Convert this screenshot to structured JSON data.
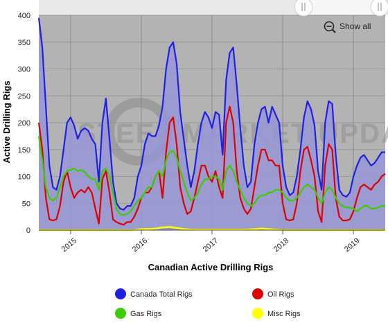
{
  "chart_data": {
    "type": "area",
    "title": "",
    "xlabel": "Canadian Active Drilling Rigs",
    "ylabel": "Active Drilling Rigs",
    "ylim": [
      0,
      400
    ],
    "yticks": [
      0,
      50,
      100,
      150,
      200,
      250,
      300,
      350,
      400
    ],
    "xlim": [
      2014.55,
      2019.45
    ],
    "xticks": [
      {
        "value": 2015,
        "label": "2015"
      },
      {
        "value": 2016,
        "label": "2016"
      },
      {
        "value": 2017,
        "label": "2017"
      },
      {
        "value": 2018,
        "label": "2018"
      },
      {
        "value": 2019,
        "label": "2019"
      }
    ],
    "grid": true,
    "legend_position": "bottom",
    "series": [
      {
        "name": "Canada Total Rigs",
        "color": "#1f1fe6",
        "fill": "rgba(150,150,215,0.85)",
        "x": [
          2014.55,
          2014.6,
          2014.65,
          2014.7,
          2014.75,
          2014.8,
          2014.85,
          2014.9,
          2014.95,
          2015.0,
          2015.05,
          2015.1,
          2015.15,
          2015.2,
          2015.25,
          2015.3,
          2015.35,
          2015.4,
          2015.45,
          2015.5,
          2015.55,
          2015.6,
          2015.65,
          2015.7,
          2015.75,
          2015.8,
          2015.85,
          2015.9,
          2015.95,
          2016.0,
          2016.05,
          2016.1,
          2016.15,
          2016.2,
          2016.25,
          2016.3,
          2016.35,
          2016.4,
          2016.45,
          2016.5,
          2016.55,
          2016.6,
          2016.65,
          2016.7,
          2016.75,
          2016.8,
          2016.85,
          2016.9,
          2016.95,
          2017.0,
          2017.05,
          2017.1,
          2017.15,
          2017.2,
          2017.25,
          2017.3,
          2017.35,
          2017.4,
          2017.45,
          2017.5,
          2017.55,
          2017.6,
          2017.65,
          2017.7,
          2017.75,
          2017.8,
          2017.85,
          2017.9,
          2017.95,
          2018.0,
          2018.05,
          2018.1,
          2018.15,
          2018.2,
          2018.25,
          2018.3,
          2018.35,
          2018.4,
          2018.45,
          2018.5,
          2018.55,
          2018.6,
          2018.65,
          2018.7,
          2018.75,
          2018.8,
          2018.85,
          2018.9,
          2018.95,
          2019.0,
          2019.05,
          2019.1,
          2019.15,
          2019.2,
          2019.25,
          2019.3,
          2019.35,
          2019.4,
          2019.45
        ],
        "values": [
          395,
          340,
          230,
          120,
          80,
          75,
          100,
          150,
          200,
          210,
          195,
          170,
          185,
          190,
          185,
          170,
          160,
          90,
          200,
          245,
          170,
          90,
          50,
          40,
          38,
          45,
          45,
          60,
          100,
          120,
          160,
          180,
          175,
          175,
          195,
          230,
          300,
          340,
          350,
          310,
          220,
          170,
          120,
          80,
          110,
          160,
          200,
          220,
          210,
          190,
          220,
          215,
          140,
          280,
          330,
          340,
          270,
          190,
          120,
          80,
          90,
          160,
          200,
          225,
          230,
          200,
          230,
          215,
          200,
          120,
          80,
          65,
          70,
          100,
          150,
          210,
          240,
          225,
          195,
          110,
          75,
          200,
          240,
          235,
          140,
          75,
          65,
          62,
          70,
          100,
          120,
          135,
          140,
          130,
          120,
          125,
          135,
          145,
          145
        ]
      },
      {
        "name": "Oil Rigs",
        "color": "#e00000",
        "x": [
          2014.55,
          2014.6,
          2014.65,
          2014.7,
          2014.75,
          2014.8,
          2014.85,
          2014.9,
          2014.95,
          2015.0,
          2015.05,
          2015.1,
          2015.15,
          2015.2,
          2015.25,
          2015.3,
          2015.35,
          2015.4,
          2015.45,
          2015.5,
          2015.55,
          2015.6,
          2015.65,
          2015.7,
          2015.75,
          2015.8,
          2015.85,
          2015.9,
          2015.95,
          2016.0,
          2016.05,
          2016.1,
          2016.15,
          2016.2,
          2016.25,
          2016.3,
          2016.35,
          2016.4,
          2016.45,
          2016.5,
          2016.55,
          2016.6,
          2016.65,
          2016.7,
          2016.75,
          2016.8,
          2016.85,
          2016.9,
          2016.95,
          2017.0,
          2017.05,
          2017.1,
          2017.15,
          2017.2,
          2017.25,
          2017.3,
          2017.35,
          2017.4,
          2017.45,
          2017.5,
          2017.55,
          2017.6,
          2017.65,
          2017.7,
          2017.75,
          2017.8,
          2017.85,
          2017.9,
          2017.95,
          2018.0,
          2018.05,
          2018.1,
          2018.15,
          2018.2,
          2018.25,
          2018.3,
          2018.35,
          2018.4,
          2018.45,
          2018.5,
          2018.55,
          2018.6,
          2018.65,
          2018.7,
          2018.75,
          2018.8,
          2018.85,
          2018.9,
          2018.95,
          2019.0,
          2019.05,
          2019.1,
          2019.15,
          2019.2,
          2019.25,
          2019.3,
          2019.35,
          2019.4,
          2019.45
        ],
        "values": [
          200,
          150,
          60,
          20,
          18,
          20,
          45,
          90,
          110,
          80,
          60,
          70,
          75,
          70,
          80,
          70,
          40,
          12,
          95,
          110,
          70,
          20,
          15,
          12,
          10,
          15,
          15,
          25,
          40,
          60,
          70,
          70,
          80,
          100,
          110,
          60,
          145,
          200,
          210,
          160,
          80,
          50,
          30,
          35,
          60,
          90,
          120,
          120,
          100,
          90,
          110,
          80,
          60,
          200,
          230,
          200,
          110,
          60,
          40,
          30,
          40,
          80,
          120,
          150,
          150,
          130,
          130,
          120,
          120,
          50,
          20,
          18,
          20,
          50,
          110,
          150,
          155,
          130,
          100,
          35,
          15,
          120,
          160,
          150,
          60,
          25,
          18,
          18,
          20,
          35,
          60,
          80,
          85,
          80,
          75,
          85,
          90,
          100,
          105
        ]
      },
      {
        "name": "Gas Rigs",
        "color": "#3ccc00",
        "x": [
          2014.55,
          2014.6,
          2014.65,
          2014.7,
          2014.75,
          2014.8,
          2014.85,
          2014.9,
          2014.95,
          2015.0,
          2015.05,
          2015.1,
          2015.15,
          2015.2,
          2015.25,
          2015.3,
          2015.35,
          2015.4,
          2015.45,
          2015.5,
          2015.55,
          2015.6,
          2015.65,
          2015.7,
          2015.75,
          2015.8,
          2015.85,
          2015.9,
          2015.95,
          2016.0,
          2016.05,
          2016.1,
          2016.15,
          2016.2,
          2016.25,
          2016.3,
          2016.35,
          2016.4,
          2016.45,
          2016.5,
          2016.55,
          2016.6,
          2016.65,
          2016.7,
          2016.75,
          2016.8,
          2016.85,
          2016.9,
          2016.95,
          2017.0,
          2017.05,
          2017.1,
          2017.15,
          2017.2,
          2017.25,
          2017.3,
          2017.35,
          2017.4,
          2017.45,
          2017.5,
          2017.55,
          2017.6,
          2017.65,
          2017.7,
          2017.75,
          2017.8,
          2017.85,
          2017.9,
          2017.95,
          2018.0,
          2018.05,
          2018.1,
          2018.15,
          2018.2,
          2018.25,
          2018.3,
          2018.35,
          2018.4,
          2018.45,
          2018.5,
          2018.55,
          2018.6,
          2018.65,
          2018.7,
          2018.75,
          2018.8,
          2018.85,
          2018.9,
          2018.95,
          2019.0,
          2019.05,
          2019.1,
          2019.15,
          2019.2,
          2019.25,
          2019.3,
          2019.35,
          2019.4,
          2019.45
        ],
        "values": [
          175,
          130,
          80,
          60,
          55,
          60,
          80,
          100,
          110,
          112,
          115,
          110,
          112,
          108,
          100,
          95,
          95,
          75,
          110,
          115,
          100,
          70,
          40,
          30,
          28,
          30,
          35,
          45,
          55,
          60,
          70,
          80,
          80,
          100,
          110,
          100,
          130,
          145,
          148,
          135,
          110,
          90,
          70,
          55,
          60,
          70,
          85,
          95,
          95,
          100,
          100,
          95,
          75,
          110,
          120,
          110,
          90,
          75,
          60,
          50,
          45,
          50,
          60,
          65,
          65,
          70,
          70,
          75,
          75,
          70,
          60,
          55,
          55,
          60,
          70,
          80,
          85,
          80,
          75,
          60,
          50,
          70,
          80,
          75,
          60,
          50,
          45,
          42,
          42,
          40,
          35,
          40,
          45,
          45,
          40,
          40,
          42,
          45,
          45
        ]
      },
      {
        "name": "Misc Rigs",
        "color": "#ffff00",
        "x": [
          2014.55,
          2015.0,
          2015.5,
          2015.9,
          2016.0,
          2016.1,
          2016.2,
          2016.3,
          2016.4,
          2016.5,
          2016.6,
          2016.7,
          2017.0,
          2017.5,
          2017.7,
          2018.0,
          2018.5,
          2019.0,
          2019.45
        ],
        "values": [
          0,
          0,
          0,
          0,
          2,
          2,
          3,
          5,
          6,
          4,
          2,
          1,
          1,
          1,
          3,
          0,
          0,
          0,
          0
        ]
      }
    ]
  },
  "controls": {
    "show_all_label": "Show all",
    "zoom_out_icon": "zoom-out-icon",
    "navigator_handle_icon": "drag-handle-icon"
  },
  "watermark": {
    "text": "STEEL MARKET UPDATE"
  }
}
